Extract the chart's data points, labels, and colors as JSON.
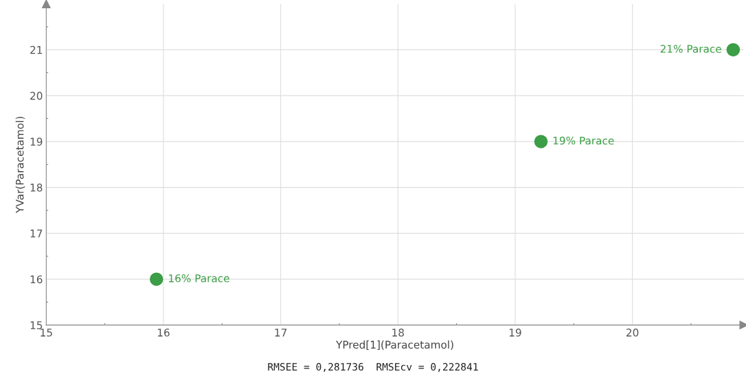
{
  "chart_data": {
    "type": "scatter",
    "xlabel": "YPred[1](Paracetamol)",
    "ylabel": "YVar(Paracetamol)",
    "x": [
      15.94,
      19.22,
      20.86
    ],
    "series": [
      {
        "color": "#3c9e46",
        "values": [
          16,
          19,
          21
        ]
      }
    ],
    "marker": "circle",
    "xlim": [
      15,
      20.95
    ],
    "ylim": [
      15,
      22
    ],
    "xticks": [
      15,
      16,
      17,
      18,
      19,
      20
    ],
    "yticks": [
      15,
      16,
      17,
      18,
      19,
      20,
      21
    ],
    "grid": true,
    "annotations": [
      {
        "text": "16% Parace",
        "x": 15.94,
        "y": 16
      },
      {
        "text": "19% Parace",
        "x": 19.22,
        "y": 19
      },
      {
        "text": "21% Parace",
        "x": 20.86,
        "y": 21
      },
      "RMSEE = 0,281736  RMSEcv = 0,222841"
    ]
  }
}
